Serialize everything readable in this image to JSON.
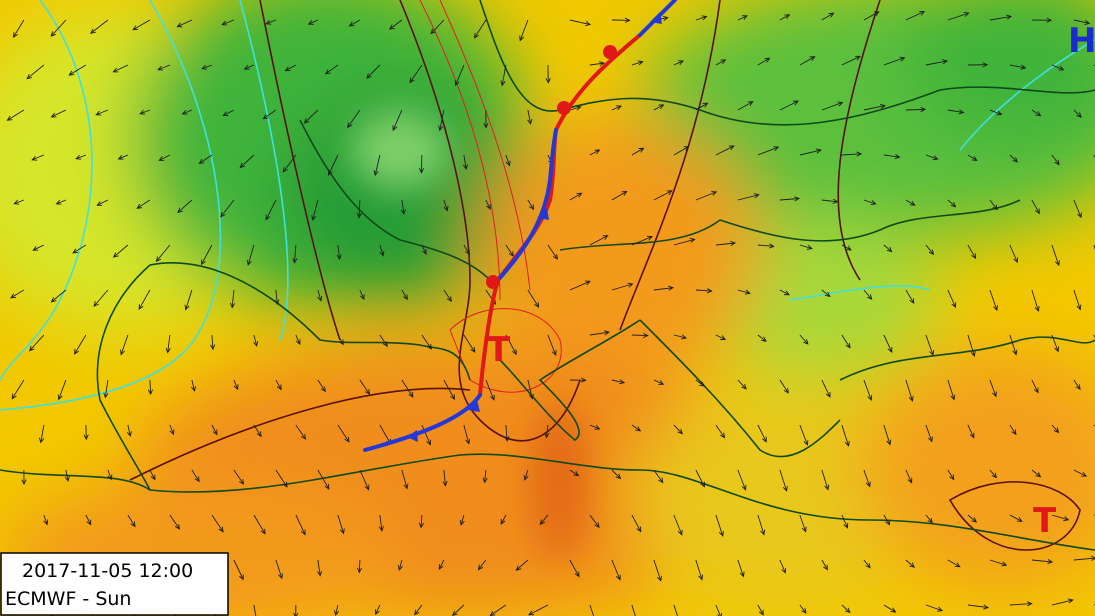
{
  "pressure_centers": [
    {
      "label": "H"
    },
    {
      "label": "T"
    },
    {
      "label": "T"
    }
  ],
  "info": {
    "timestamp": "2017-11-05 12:00",
    "model": "ECMWF - Sun"
  }
}
